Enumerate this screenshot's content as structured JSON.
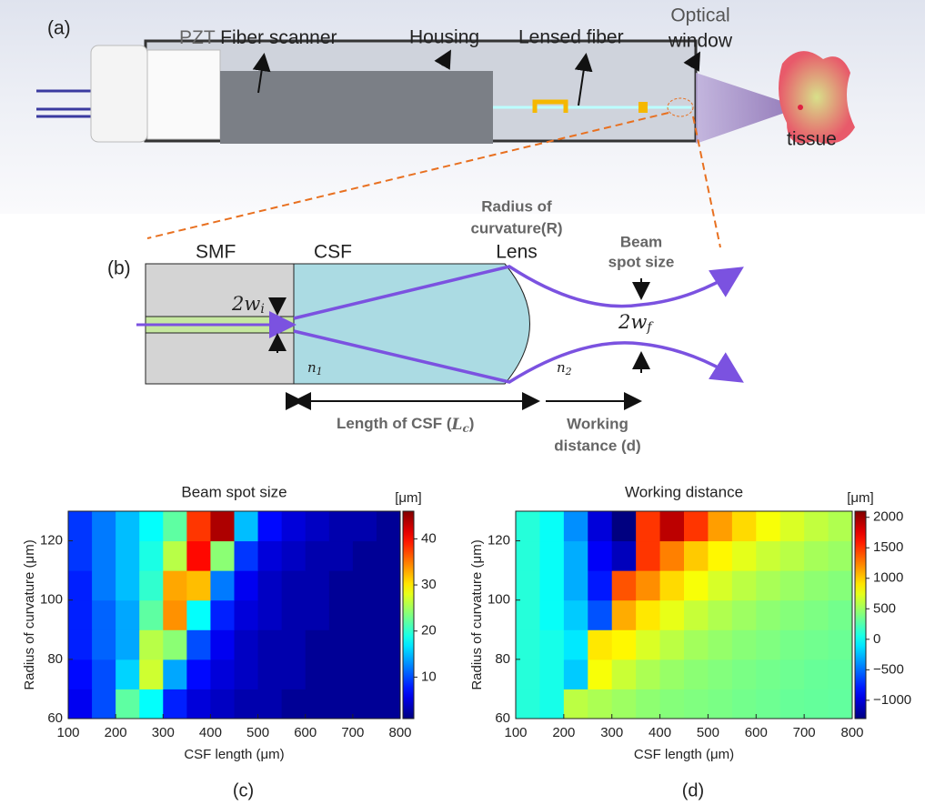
{
  "figure_a": {
    "panel_label": "(a)",
    "pzt": "PZT",
    "fiber_scanner": "Fiber scanner",
    "housing": "Housing",
    "lensed_fiber": "Lensed fiber",
    "optical_window": [
      "Optical",
      "window"
    ],
    "tissue": "tissue"
  },
  "figure_b": {
    "panel_label": "(b)",
    "smf": "SMF",
    "csf": "CSF",
    "radius": [
      "Radius of",
      "curvature(R)"
    ],
    "lens": "Lens",
    "beam_spot": [
      "Beam",
      "spot size"
    ],
    "w_i": {
      "main": "2w",
      "sub": "i"
    },
    "w_f": {
      "main": "2w",
      "sub": "f"
    },
    "n1": {
      "main": "n",
      "sub": "1"
    },
    "n2": {
      "main": "n",
      "sub": "2"
    },
    "length_csf": {
      "text": "Length of CSF (",
      "var": "L",
      "sub": "c",
      "close": ")"
    },
    "working_distance": [
      "Working",
      "distance (d)"
    ]
  },
  "chart_data": [
    {
      "type": "heatmap",
      "panel_label": "(c)",
      "title": "Beam spot size",
      "unit": "[μm]",
      "xlabel": "CSF length (μm)",
      "ylabel": "Radius of curvature (μm)",
      "xlim": [
        100,
        800
      ],
      "ylim": [
        60,
        130
      ],
      "xticks": [
        100,
        200,
        300,
        400,
        500,
        600,
        700,
        800
      ],
      "yticks": [
        60,
        80,
        100,
        120
      ],
      "xbins": [
        100,
        150,
        200,
        250,
        300,
        350,
        400,
        450,
        500,
        550,
        600,
        650,
        700,
        750,
        800
      ],
      "ybins": [
        60,
        70,
        80,
        90,
        100,
        110,
        120,
        130
      ],
      "zlim": [
        1,
        46
      ],
      "zticks": [
        10,
        20,
        30,
        40
      ],
      "colormap": "jet",
      "z": [
        [
          6,
          10,
          22,
          18,
          8,
          5,
          4,
          3,
          3,
          2,
          2,
          2,
          2,
          2
        ],
        [
          7,
          10,
          16,
          27,
          14,
          7,
          5,
          4,
          3,
          3,
          2,
          2,
          2,
          2
        ],
        [
          8,
          11,
          14,
          26,
          24,
          10,
          6,
          4,
          3,
          3,
          2,
          2,
          2,
          2
        ],
        [
          8,
          11,
          14,
          22,
          34,
          18,
          8,
          5,
          4,
          3,
          3,
          2,
          2,
          2
        ],
        [
          8,
          12,
          15,
          20,
          33,
          32,
          12,
          6,
          4,
          3,
          3,
          2,
          2,
          2
        ],
        [
          9,
          12,
          15,
          19,
          26,
          40,
          24,
          9,
          5,
          4,
          3,
          3,
          2,
          2
        ],
        [
          9,
          12,
          15,
          18,
          22,
          38,
          44,
          15,
          7,
          5,
          4,
          3,
          3,
          2
        ]
      ]
    },
    {
      "type": "heatmap",
      "panel_label": "(d)",
      "title": "Working distance",
      "unit": "[μm]",
      "xlabel": "CSF length (μm)",
      "ylabel": "Radius of curvature (μm)",
      "xlim": [
        100,
        800
      ],
      "ylim": [
        60,
        130
      ],
      "xticks": [
        100,
        200,
        300,
        400,
        500,
        600,
        700,
        800
      ],
      "yticks": [
        60,
        80,
        100,
        120
      ],
      "xbins": [
        100,
        150,
        200,
        250,
        300,
        350,
        400,
        450,
        500,
        550,
        600,
        650,
        700,
        750,
        800
      ],
      "ybins": [
        60,
        70,
        80,
        90,
        100,
        110,
        120,
        130
      ],
      "zlim": [
        -1300,
        2100
      ],
      "zticks": [
        {
          "value": -1000,
          "label": "−1000"
        },
        {
          "value": -500,
          "label": "−500"
        },
        0,
        500,
        1000,
        1500,
        2000
      ],
      "colormap": "jet",
      "z": [
        [
          100,
          50,
          600,
          550,
          500,
          450,
          420,
          400,
          380,
          360,
          340,
          320,
          310,
          300
        ],
        [
          100,
          50,
          -200,
          800,
          650,
          550,
          480,
          440,
          410,
          380,
          360,
          340,
          320,
          310
        ],
        [
          100,
          50,
          -100,
          900,
          850,
          700,
          600,
          520,
          470,
          430,
          400,
          370,
          350,
          330
        ],
        [
          100,
          0,
          -200,
          -600,
          1100,
          900,
          750,
          640,
          560,
          500,
          450,
          420,
          390,
          360
        ],
        [
          100,
          0,
          -300,
          -800,
          1400,
          1200,
          950,
          800,
          690,
          600,
          540,
          490,
          450,
          420
        ],
        [
          100,
          0,
          -300,
          -900,
          -1100,
          1500,
          1250,
          1000,
          850,
          740,
          650,
          590,
          530,
          490
        ],
        [
          100,
          0,
          -400,
          -1000,
          -1300,
          1500,
          1900,
          1500,
          1150,
          950,
          800,
          700,
          620,
          560
        ]
      ]
    }
  ]
}
